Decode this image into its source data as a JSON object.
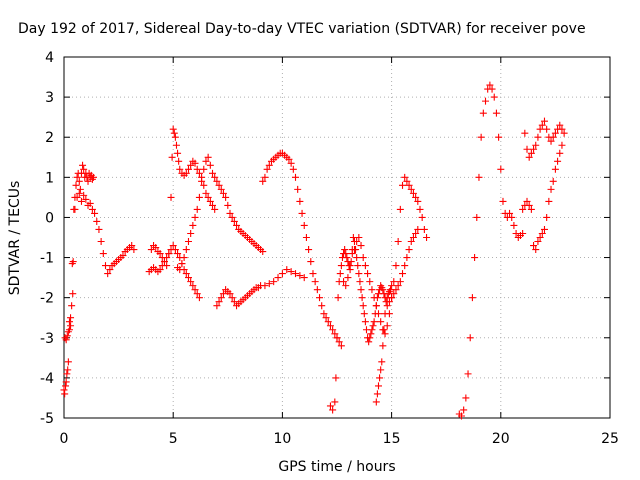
{
  "chart_data": {
    "type": "scatter",
    "title": "Day 192 of 2017, Sidereal Day-to-day VTEC variation (SDTVAR) for receiver pove",
    "xlabel": "GPS time / hours",
    "ylabel": "SDTVAR / TECUs",
    "xlim": [
      0,
      25
    ],
    "ylim": [
      -5,
      4
    ],
    "xticks": [
      "0",
      "5",
      "10",
      "15",
      "20",
      "25"
    ],
    "yticks": [
      "-5",
      "-4",
      "-3",
      "-2",
      "-1",
      "0",
      "1",
      "2",
      "3",
      "4"
    ],
    "grid": true,
    "marker": "+",
    "color": "#ff0000",
    "series": [
      {
        "name": "pove",
        "x": [
          0.0,
          0.03,
          0.07,
          0.1,
          0.13,
          0.17,
          0.2,
          0.25,
          0.3,
          0.35,
          0.4,
          0.45,
          0.5,
          0.55,
          0.6,
          0.65,
          0.7,
          0.75,
          0.8,
          0.85,
          0.9,
          0.95,
          1.0,
          1.05,
          1.1,
          1.15,
          1.2,
          1.25,
          1.3,
          1.35,
          0.5,
          0.6,
          0.7,
          0.8,
          0.9,
          1.0,
          1.1,
          1.2,
          1.3,
          1.4,
          1.5,
          1.6,
          1.7,
          1.8,
          1.9,
          2.0,
          2.1,
          2.2,
          2.3,
          2.4,
          2.5,
          2.6,
          2.7,
          2.8,
          2.9,
          3.0,
          3.1,
          3.2,
          0.05,
          0.1,
          0.15,
          0.2,
          0.25,
          0.3,
          0.38,
          0.42,
          3.9,
          4.0,
          4.1,
          4.2,
          4.3,
          4.4,
          4.5,
          4.6,
          4.7,
          4.8,
          4.9,
          5.0,
          5.1,
          5.2,
          5.3,
          5.4,
          5.5,
          5.6,
          5.7,
          5.8,
          5.9,
          6.0,
          6.1,
          6.2,
          4.0,
          4.1,
          4.2,
          4.3,
          4.4,
          4.5,
          4.6,
          4.7,
          4.8,
          4.9,
          4.95,
          5.0,
          5.05,
          5.1,
          5.15,
          5.2,
          5.25,
          5.3,
          5.4,
          5.5,
          5.6,
          5.7,
          5.8,
          5.9,
          6.0,
          6.1,
          6.2,
          6.3,
          6.4,
          6.5,
          6.6,
          6.7,
          6.8,
          6.9,
          5.2,
          5.3,
          5.4,
          5.5,
          5.6,
          5.7,
          5.8,
          5.9,
          6.0,
          6.1,
          6.2,
          6.3,
          6.4,
          6.5,
          6.6,
          6.7,
          6.8,
          6.9,
          7.0,
          7.1,
          7.2,
          7.3,
          7.4,
          7.5,
          7.6,
          7.7,
          7.8,
          7.9,
          8.0,
          8.1,
          8.2,
          8.3,
          8.4,
          8.5,
          8.6,
          8.7,
          8.8,
          8.9,
          9.0,
          9.1,
          7.0,
          7.1,
          7.2,
          7.3,
          7.4,
          7.5,
          7.6,
          7.7,
          7.8,
          7.9,
          8.0,
          8.1,
          8.2,
          8.3,
          8.4,
          8.5,
          8.6,
          8.7,
          8.8,
          8.9,
          9.0,
          9.2,
          9.4,
          9.6,
          9.8,
          10.0,
          10.2,
          10.4,
          10.6,
          10.8,
          11.0,
          9.1,
          9.2,
          9.3,
          9.4,
          9.5,
          9.6,
          9.7,
          9.8,
          9.9,
          10.0,
          10.1,
          10.2,
          10.3,
          10.4,
          10.5,
          10.6,
          10.7,
          10.8,
          10.9,
          11.0,
          11.1,
          11.2,
          11.3,
          11.4,
          11.5,
          11.6,
          11.7,
          11.8,
          11.9,
          12.0,
          12.1,
          12.2,
          12.3,
          12.4,
          12.5,
          12.6,
          12.7,
          12.2,
          12.3,
          12.4,
          12.45,
          12.5,
          12.55,
          12.6,
          12.65,
          12.7,
          12.75,
          12.8,
          12.85,
          12.9,
          12.95,
          13.0,
          13.05,
          13.1,
          13.15,
          13.2,
          13.25,
          13.3,
          13.35,
          13.4,
          13.45,
          13.5,
          13.55,
          13.6,
          13.65,
          13.7,
          13.75,
          13.8,
          13.85,
          13.9,
          13.95,
          14.0,
          14.05,
          14.1,
          14.15,
          14.2,
          14.25,
          14.3,
          14.35,
          14.4,
          14.45,
          14.5,
          14.55,
          14.6,
          14.65,
          14.7,
          14.75,
          14.8,
          14.85,
          14.9,
          14.95,
          15.0,
          12.8,
          12.9,
          13.0,
          13.1,
          13.2,
          13.3,
          13.4,
          13.5,
          13.6,
          13.7,
          13.8,
          13.9,
          14.0,
          14.1,
          14.2,
          14.3,
          14.4,
          14.5,
          14.6,
          14.7,
          14.8,
          14.9,
          15.0,
          15.1,
          15.2,
          15.3,
          15.4,
          15.5,
          15.6,
          15.7,
          15.8,
          15.9,
          16.0,
          16.1,
          16.2,
          16.3,
          16.4,
          16.5,
          16.6,
          14.3,
          14.35,
          14.4,
          14.45,
          14.5,
          14.55,
          14.6,
          14.65,
          14.7,
          14.8,
          14.9,
          15.0,
          15.1,
          15.2,
          15.3,
          15.4,
          15.5,
          15.6,
          15.7,
          15.8,
          15.9,
          16.0,
          16.1,
          16.2,
          18.1,
          18.2,
          18.3,
          18.4,
          18.5,
          18.6,
          18.7,
          18.8,
          18.9,
          19.0,
          19.1,
          19.2,
          19.3,
          19.4,
          19.5,
          19.6,
          19.7,
          19.8,
          19.9,
          20.0,
          20.1,
          20.2,
          20.3,
          20.4,
          20.5,
          20.6,
          20.7,
          20.8,
          20.9,
          21.0,
          21.1,
          21.2,
          21.3,
          21.4,
          21.5,
          21.6,
          21.7,
          21.8,
          21.9,
          22.0,
          22.1,
          22.2,
          22.3,
          22.4,
          22.5,
          22.6,
          22.7,
          22.8,
          22.9,
          21.0,
          21.1,
          21.2,
          21.3,
          21.4,
          21.5,
          21.6,
          21.7,
          21.8,
          21.9,
          22.0,
          22.1,
          22.2,
          22.3,
          22.4,
          22.5,
          22.6,
          22.7,
          22.8
        ],
        "y": [
          -4.3,
          -4.4,
          -4.2,
          -4.1,
          -3.9,
          -3.8,
          -3.6,
          -2.6,
          -2.5,
          -2.2,
          -1.9,
          0.2,
          0.5,
          0.8,
          1.0,
          1.1,
          0.9,
          0.7,
          1.1,
          1.3,
          1.2,
          1.0,
          1.1,
          1.0,
          0.9,
          1.1,
          1.0,
          1.05,
          0.95,
          1.0,
          0.2,
          0.5,
          0.6,
          0.4,
          0.55,
          0.45,
          0.3,
          0.35,
          0.2,
          0.1,
          -0.1,
          -0.3,
          -0.6,
          -0.9,
          -1.2,
          -1.4,
          -1.3,
          -1.2,
          -1.15,
          -1.1,
          -1.05,
          -1.0,
          -0.95,
          -0.85,
          -0.8,
          -0.75,
          -0.7,
          -0.8,
          -3.0,
          -3.05,
          -2.95,
          -2.85,
          -2.8,
          -2.7,
          -1.15,
          -1.1,
          -1.35,
          -1.3,
          -1.25,
          -1.3,
          -1.35,
          -1.3,
          -1.2,
          -1.1,
          -1.0,
          -0.9,
          -0.8,
          -0.7,
          -0.8,
          -0.9,
          -1.0,
          -1.15,
          -1.3,
          -1.4,
          -1.5,
          -1.6,
          -1.7,
          -1.8,
          -1.9,
          -2.0,
          -0.8,
          -0.7,
          -0.75,
          -0.85,
          -0.9,
          -1.0,
          -1.1,
          -1.2,
          -0.9,
          0.5,
          1.5,
          2.2,
          2.1,
          2.0,
          1.8,
          1.6,
          1.4,
          1.2,
          1.1,
          1.05,
          1.1,
          1.2,
          1.3,
          1.4,
          1.35,
          1.2,
          1.1,
          1.0,
          0.8,
          0.6,
          0.5,
          0.4,
          0.3,
          0.2,
          -1.25,
          -1.3,
          -1.15,
          -1.0,
          -0.8,
          -0.6,
          -0.4,
          -0.2,
          0.0,
          0.2,
          0.5,
          0.9,
          1.2,
          1.4,
          1.5,
          1.3,
          1.1,
          1.0,
          0.9,
          0.8,
          0.7,
          0.6,
          0.5,
          0.3,
          0.1,
          0.0,
          -0.1,
          -0.2,
          -0.3,
          -0.35,
          -0.4,
          -0.45,
          -0.5,
          -0.55,
          -0.6,
          -0.65,
          -0.7,
          -0.75,
          -0.8,
          -0.85,
          -2.2,
          -2.1,
          -2.0,
          -1.9,
          -1.8,
          -1.85,
          -1.9,
          -2.0,
          -2.1,
          -2.2,
          -2.15,
          -2.1,
          -2.05,
          -2.0,
          -1.95,
          -1.9,
          -1.85,
          -1.8,
          -1.75,
          -1.75,
          -1.7,
          -1.7,
          -1.65,
          -1.6,
          -1.5,
          -1.4,
          -1.3,
          -1.35,
          -1.4,
          -1.45,
          -1.5,
          0.9,
          1.0,
          1.2,
          1.3,
          1.4,
          1.45,
          1.5,
          1.55,
          1.6,
          1.6,
          1.55,
          1.5,
          1.45,
          1.35,
          1.2,
          1.0,
          0.7,
          0.4,
          0.1,
          -0.2,
          -0.5,
          -0.8,
          -1.1,
          -1.4,
          -1.6,
          -1.8,
          -2.0,
          -2.2,
          -2.4,
          -2.5,
          -2.6,
          -2.7,
          -2.8,
          -2.9,
          -3.0,
          -3.1,
          -3.2,
          -4.7,
          -4.8,
          -4.6,
          -4.0,
          -3.0,
          -2.0,
          -1.6,
          -1.4,
          -1.2,
          -1.0,
          -0.9,
          -0.8,
          -0.9,
          -1.0,
          -1.1,
          -1.2,
          -1.3,
          -1.1,
          -0.8,
          -0.5,
          -0.6,
          -0.8,
          -1.0,
          -1.2,
          -1.4,
          -1.6,
          -1.8,
          -2.0,
          -2.2,
          -2.4,
          -2.6,
          -2.8,
          -3.0,
          -3.1,
          -3.0,
          -2.9,
          -2.8,
          -2.7,
          -2.6,
          -2.4,
          -2.2,
          -2.0,
          -1.9,
          -1.8,
          -1.7,
          -1.75,
          -1.8,
          -1.9,
          -2.0,
          -2.1,
          -2.0,
          -1.9,
          -1.85,
          -1.8,
          -1.7,
          -1.6,
          -1.7,
          -1.5,
          -1.2,
          -0.9,
          -0.8,
          -0.6,
          -0.5,
          -0.7,
          -1.0,
          -1.2,
          -1.4,
          -1.6,
          -1.8,
          -2.0,
          -2.2,
          -2.4,
          -2.6,
          -2.8,
          -2.9,
          -2.7,
          -2.4,
          -2.0,
          -1.6,
          -1.2,
          -0.6,
          0.2,
          0.8,
          1.0,
          0.9,
          0.8,
          0.7,
          0.6,
          0.5,
          0.4,
          0.2,
          0.0,
          -0.3,
          -0.5,
          -4.6,
          -4.4,
          -4.2,
          -4.0,
          -3.8,
          -3.6,
          -3.2,
          -2.8,
          -2.4,
          -2.2,
          -2.1,
          -2.0,
          -1.9,
          -1.8,
          -1.7,
          -1.6,
          -1.4,
          -1.2,
          -1.0,
          -0.8,
          -0.6,
          -0.5,
          -0.4,
          -0.3,
          -4.9,
          -4.95,
          -4.8,
          -4.5,
          -3.9,
          -3.0,
          -2.0,
          -1.0,
          0.0,
          1.0,
          2.0,
          2.6,
          2.9,
          3.2,
          3.3,
          3.2,
          3.0,
          2.6,
          2.0,
          1.2,
          0.4,
          0.1,
          0.0,
          0.1,
          0.0,
          -0.2,
          -0.4,
          -0.5,
          -0.45,
          -0.4,
          2.1,
          1.7,
          1.5,
          1.6,
          1.7,
          1.8,
          2.0,
          2.2,
          2.3,
          2.4,
          2.2,
          2.0,
          1.9,
          2.0,
          2.1,
          2.2,
          2.3,
          2.2,
          2.1,
          0.2,
          0.3,
          0.4,
          0.3,
          0.2,
          -0.7,
          -0.8,
          -0.6,
          -0.5,
          -0.4,
          -0.3,
          0.0,
          0.4,
          0.7,
          0.9,
          1.2,
          1.4,
          1.6,
          1.8
        ]
      }
    ]
  }
}
